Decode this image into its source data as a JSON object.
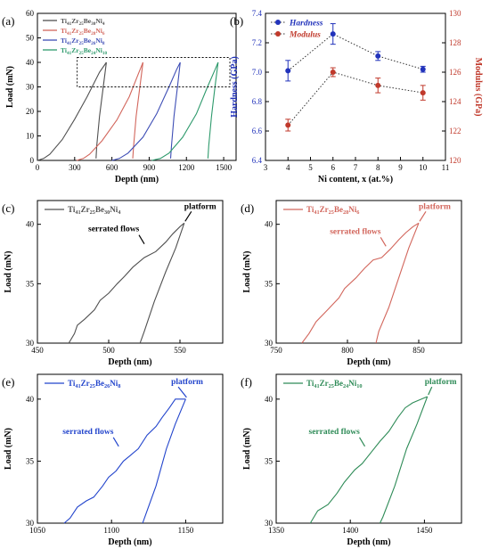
{
  "chart_data": [
    {
      "panel": "(a)",
      "type": "line",
      "xlabel": "Depth (nm)",
      "ylabel": "Load (mN)",
      "xlim": [
        0,
        1600
      ],
      "ylim": [
        0,
        60
      ],
      "xticks": [
        0,
        300,
        600,
        900,
        1200,
        1500
      ],
      "yticks": [
        0,
        10,
        20,
        30,
        40,
        50,
        60
      ],
      "legend_position": "top-left",
      "series": [
        {
          "name": "Ti41Zr25Be30Ni4",
          "color": "#505050",
          "loading": [
            [
              0,
              0
            ],
            [
              50,
              0.8
            ],
            [
              100,
              2.5
            ],
            [
              200,
              8.5
            ],
            [
              300,
              16.8
            ],
            [
              400,
              26
            ],
            [
              500,
              36
            ],
            [
              555,
              40
            ]
          ],
          "unloading": [
            [
              555,
              40
            ],
            [
              530,
              30
            ],
            [
              500,
              18
            ],
            [
              478,
              6
            ],
            [
              472,
              0.8
            ]
          ]
        },
        {
          "name": "Ti41Zr25Be28Ni6",
          "color": "#d2665c",
          "loading": [
            [
              315,
              0
            ],
            [
              370,
              0.8
            ],
            [
              420,
              2.5
            ],
            [
              520,
              8
            ],
            [
              640,
              16.5
            ],
            [
              740,
              26
            ],
            [
              810,
              35
            ],
            [
              850,
              40
            ]
          ],
          "unloading": [
            [
              850,
              40
            ],
            [
              825,
              30
            ],
            [
              795,
              18
            ],
            [
              775,
              6
            ],
            [
              768,
              0.8
            ]
          ]
        },
        {
          "name": "Ti41Zr25Be26Ni8",
          "color": "#3d4db5",
          "loading": [
            [
              600,
              0
            ],
            [
              660,
              0.8
            ],
            [
              730,
              3
            ],
            [
              850,
              9.5
            ],
            [
              960,
              19
            ],
            [
              1060,
              30
            ],
            [
              1120,
              37
            ],
            [
              1150,
              40
            ]
          ],
          "unloading": [
            [
              1150,
              40
            ],
            [
              1128,
              30
            ],
            [
              1100,
              18
            ],
            [
              1080,
              6
            ],
            [
              1073,
              0.8
            ]
          ]
        },
        {
          "name": "Ti41Zr25Be24Ni10",
          "color": "#2e9a6c",
          "loading": [
            [
              920,
              0
            ],
            [
              990,
              0.8
            ],
            [
              1060,
              3
            ],
            [
              1170,
              9.5
            ],
            [
              1280,
              19
            ],
            [
              1370,
              30
            ],
            [
              1430,
              37
            ],
            [
              1455,
              40
            ]
          ],
          "unloading": [
            [
              1455,
              40
            ],
            [
              1430,
              30
            ],
            [
              1402,
              18
            ],
            [
              1380,
              6
            ],
            [
              1373,
              0.8
            ]
          ]
        }
      ],
      "highlight_box": {
        "x": [
          320,
          1550
        ],
        "y": [
          30,
          42
        ]
      }
    },
    {
      "panel": "(b)",
      "type": "scatter",
      "xlabel": "Ni content, x (at.%)",
      "ylabel_left": "Hardness (GPa)",
      "ylabel_right": "Modulus (GPa)",
      "xlim": [
        3,
        11
      ],
      "ylim_left": [
        6.4,
        7.4
      ],
      "ylim_right": [
        120,
        130
      ],
      "xticks": [
        3,
        4,
        5,
        6,
        7,
        8,
        9,
        10,
        11
      ],
      "yticks_left": [
        6.4,
        6.6,
        6.8,
        7.0,
        7.2,
        7.4
      ],
      "yticks_right": [
        120,
        122,
        124,
        126,
        128,
        130
      ],
      "legend_position": "top-left",
      "series": [
        {
          "name": "Hardness",
          "axis": "left",
          "color": "#2233bb",
          "x": [
            4,
            6,
            8,
            10
          ],
          "y": [
            7.01,
            7.26,
            7.11,
            7.02
          ],
          "err": [
            0.07,
            0.07,
            0.03,
            0.02
          ]
        },
        {
          "name": "Modulus",
          "axis": "right",
          "color": "#c0392b",
          "x": [
            4,
            6,
            8,
            10
          ],
          "y": [
            122.4,
            126.0,
            125.1,
            124.6
          ],
          "err": [
            0.4,
            0.3,
            0.5,
            0.5
          ]
        }
      ]
    },
    {
      "panel": "(c)",
      "type": "line",
      "legend": "Ti41Zr25Be30Ni4",
      "color": "#505050",
      "xlabel": "Depth (nm)",
      "ylabel": "Load (mN)",
      "xlim": [
        450,
        580
      ],
      "ylim": [
        30,
        42
      ],
      "xticks": [
        450,
        500,
        550
      ],
      "yticks": [
        30,
        35,
        40
      ],
      "loading": [
        [
          472,
          30
        ],
        [
          476,
          30.8
        ],
        [
          478,
          31.5
        ],
        [
          483,
          32
        ],
        [
          490,
          32.8
        ],
        [
          494,
          33.6
        ],
        [
          500,
          34.2
        ],
        [
          506,
          35
        ],
        [
          511,
          35.6
        ],
        [
          517,
          36.4
        ],
        [
          525,
          37.2
        ],
        [
          533,
          37.7
        ],
        [
          540,
          38.5
        ],
        [
          545,
          39.2
        ],
        [
          550,
          39.8
        ],
        [
          553,
          40.1
        ]
      ],
      "unloading": [
        [
          553,
          40.1
        ],
        [
          547,
          38
        ],
        [
          540,
          36
        ],
        [
          532,
          33.5
        ],
        [
          525,
          31
        ],
        [
          522,
          30
        ]
      ],
      "annotations": [
        {
          "text": "platform",
          "x": 558,
          "y": 41.3
        },
        {
          "text": "serrated flows",
          "x": 520,
          "y": 39.4
        }
      ]
    },
    {
      "panel": "(d)",
      "type": "line",
      "legend": "Ti41Zr25Be28Ni6",
      "color": "#d2665c",
      "xlabel": "Depth (nm)",
      "ylabel": "Load (mN)",
      "xlim": [
        750,
        880
      ],
      "ylim": [
        30,
        42
      ],
      "xticks": [
        750,
        800,
        850
      ],
      "yticks": [
        30,
        35,
        40
      ],
      "loading": [
        [
          768,
          30
        ],
        [
          773,
          30.8
        ],
        [
          778,
          31.8
        ],
        [
          786,
          32.8
        ],
        [
          794,
          33.8
        ],
        [
          798,
          34.6
        ],
        [
          806,
          35.5
        ],
        [
          812,
          36.3
        ],
        [
          818,
          37
        ],
        [
          824,
          37.2
        ],
        [
          830,
          37.9
        ],
        [
          836,
          38.7
        ],
        [
          841,
          39.3
        ],
        [
          846,
          39.8
        ],
        [
          850,
          40.1
        ]
      ],
      "unloading": [
        [
          850,
          40.1
        ],
        [
          843,
          38
        ],
        [
          836,
          35.5
        ],
        [
          829,
          33
        ],
        [
          822,
          31
        ],
        [
          820,
          30
        ]
      ],
      "annotations": [
        {
          "text": "platform",
          "x": 855,
          "y": 41.3
        },
        {
          "text": "serrated flows",
          "x": 822,
          "y": 39.2
        }
      ]
    },
    {
      "panel": "(e)",
      "type": "line",
      "legend": "Ti41Zr25Be26Ni8",
      "color": "#2244cc",
      "xlabel": "Depth (nm)",
      "ylabel": "Load (mN)",
      "xlim": [
        1050,
        1175
      ],
      "ylim": [
        30,
        42
      ],
      "xticks": [
        1050,
        1100,
        1150
      ],
      "yticks": [
        30,
        35,
        40
      ],
      "loading": [
        [
          1068,
          30
        ],
        [
          1072,
          30.4
        ],
        [
          1077,
          31.3
        ],
        [
          1083,
          31.8
        ],
        [
          1088,
          32.1
        ],
        [
          1094,
          33
        ],
        [
          1098,
          33.7
        ],
        [
          1103,
          34.2
        ],
        [
          1108,
          35
        ],
        [
          1112,
          35.4
        ],
        [
          1118,
          36
        ],
        [
          1124,
          37.1
        ],
        [
          1130,
          37.8
        ],
        [
          1134,
          38.5
        ],
        [
          1139,
          39.3
        ],
        [
          1143,
          40
        ],
        [
          1150,
          40
        ]
      ],
      "unloading": [
        [
          1150,
          40
        ],
        [
          1143,
          38
        ],
        [
          1137,
          36
        ],
        [
          1130,
          33
        ],
        [
          1124,
          31
        ],
        [
          1121,
          30
        ]
      ],
      "annotations": [
        {
          "text": "platform",
          "x": 1145,
          "y": 41.2
        },
        {
          "text": "serrated flows",
          "x": 1100,
          "y": 37.2
        }
      ]
    },
    {
      "panel": "(f)",
      "type": "line",
      "legend": "Ti41Zr25Be24Ni10",
      "color": "#2e8b57",
      "xlabel": "Depth (nm)",
      "ylabel": "Load (mN)",
      "xlim": [
        1350,
        1475
      ],
      "ylim": [
        30,
        42
      ],
      "xticks": [
        1350,
        1400,
        1450
      ],
      "yticks": [
        30,
        35,
        40
      ],
      "loading": [
        [
          1373,
          30
        ],
        [
          1378,
          31
        ],
        [
          1385,
          31.5
        ],
        [
          1391,
          32.4
        ],
        [
          1396,
          33.3
        ],
        [
          1403,
          34.3
        ],
        [
          1408,
          34.8
        ],
        [
          1414,
          35.7
        ],
        [
          1420,
          36.6
        ],
        [
          1426,
          37.4
        ],
        [
          1432,
          38.5
        ],
        [
          1437,
          39.3
        ],
        [
          1442,
          39.7
        ],
        [
          1448,
          40
        ],
        [
          1452,
          40.2
        ]
      ],
      "unloading": [
        [
          1452,
          40.2
        ],
        [
          1445,
          38
        ],
        [
          1438,
          36
        ],
        [
          1430,
          33
        ],
        [
          1422,
          30.5
        ],
        [
          1420,
          30
        ]
      ],
      "annotations": [
        {
          "text": "platform",
          "x": 1455,
          "y": 41.2
        },
        {
          "text": "serrated flows",
          "x": 1405,
          "y": 37.2
        }
      ]
    }
  ]
}
